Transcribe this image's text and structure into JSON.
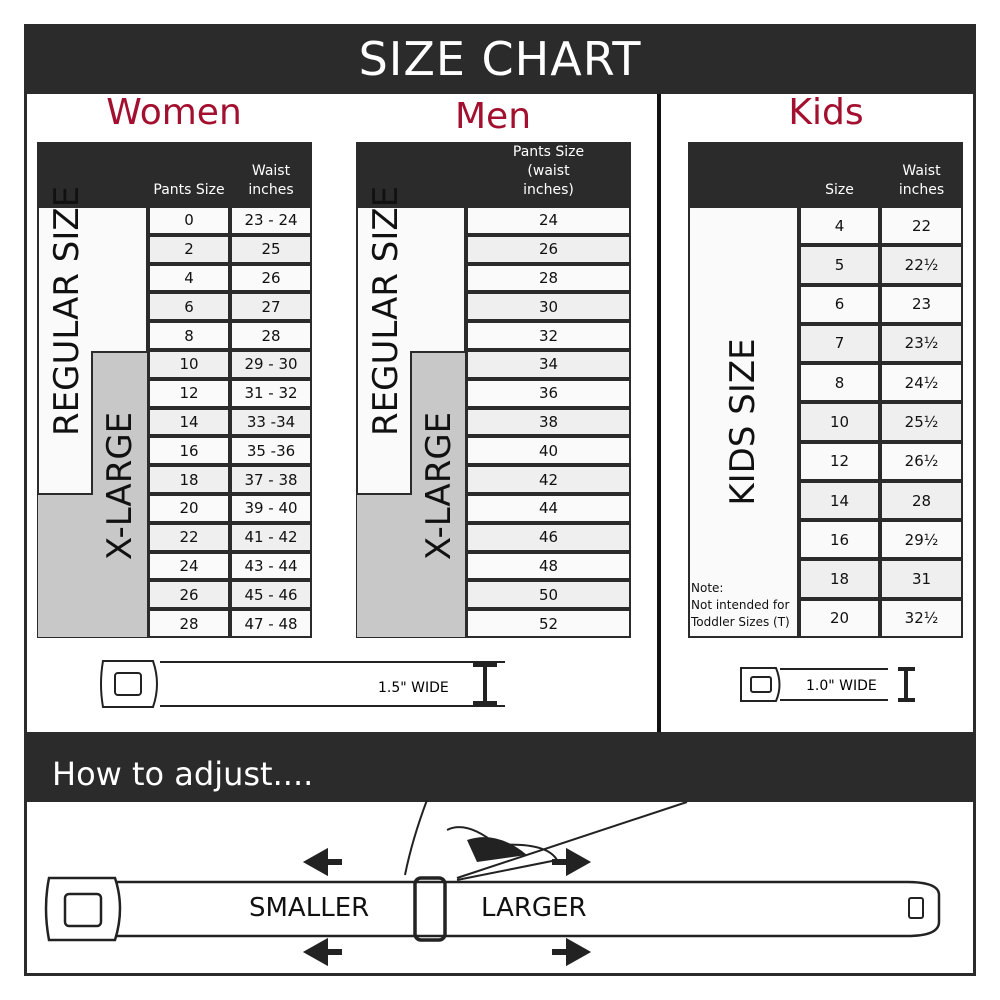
{
  "title": "SIZE CHART",
  "colors": {
    "accent": "#a3102f",
    "dark": "#2b2b2b",
    "xlarge_gray": "#c8c8c8"
  },
  "women": {
    "title": "Women",
    "col1": "Pants Size",
    "col2": "Waist inches",
    "regular_label": "REGULAR SIZE",
    "xlarge_label": "X-LARGE",
    "rows": [
      [
        "0",
        "23 - 24"
      ],
      [
        "2",
        "25"
      ],
      [
        "4",
        "26"
      ],
      [
        "6",
        "27"
      ],
      [
        "8",
        "28"
      ],
      [
        "10",
        "29 - 30"
      ],
      [
        "12",
        "31 - 32"
      ],
      [
        "14",
        "33 -34"
      ],
      [
        "16",
        "35 -36"
      ],
      [
        "18",
        "37 - 38"
      ],
      [
        "20",
        "39 - 40"
      ],
      [
        "22",
        "41 - 42"
      ],
      [
        "24",
        "43 - 44"
      ],
      [
        "26",
        "45 - 46"
      ],
      [
        "28",
        "47 - 48"
      ]
    ],
    "belt_width": "1.5\" WIDE"
  },
  "men": {
    "title": "Men",
    "col1": "Pants Size (waist inches)",
    "regular_label": "REGULAR SIZE",
    "xlarge_label": "X-LARGE",
    "rows": [
      "24",
      "26",
      "28",
      "30",
      "32",
      "34",
      "36",
      "38",
      "40",
      "42",
      "44",
      "46",
      "48",
      "50",
      "52"
    ]
  },
  "kids": {
    "title": "Kids",
    "col1": "Size",
    "col2": "Waist inches",
    "label": "KIDS SIZE",
    "note_title": "Note:",
    "note": "Not intended for Toddler Sizes (T)",
    "rows": [
      [
        "4",
        "22"
      ],
      [
        "5",
        "22½"
      ],
      [
        "6",
        "23"
      ],
      [
        "7",
        "23½"
      ],
      [
        "8",
        "24½"
      ],
      [
        "10",
        "25½"
      ],
      [
        "12",
        "26½"
      ],
      [
        "14",
        "28"
      ],
      [
        "16",
        "29½"
      ],
      [
        "18",
        "31"
      ],
      [
        "20",
        "32½"
      ]
    ],
    "belt_width": "1.0\" WIDE"
  },
  "adjust": {
    "title": "How to adjust....",
    "smaller": "SMALLER",
    "larger": "LARGER"
  }
}
